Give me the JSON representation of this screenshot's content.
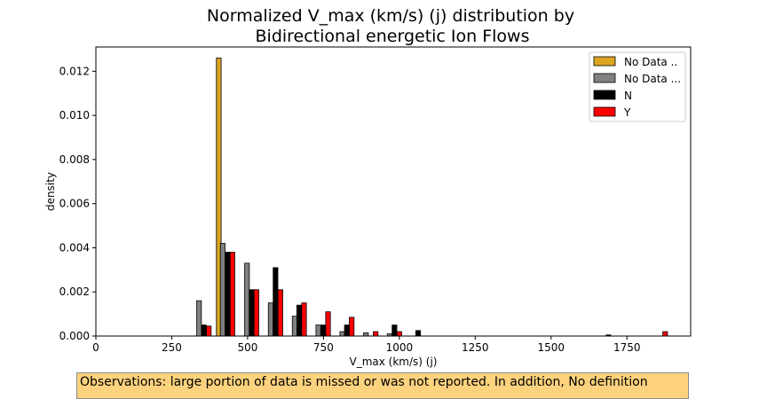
{
  "chart_data": {
    "type": "bar",
    "title_lines": [
      "Normalized V_max (km/s) (j) distribution by",
      "Bidirectional energetic Ion Flows"
    ],
    "xlabel": "V_max (km/s) (j)",
    "ylabel": "density",
    "xlim": [
      0,
      1960
    ],
    "ylim": [
      0,
      0.0131
    ],
    "x_ticks": [
      0,
      250,
      500,
      750,
      1000,
      1250,
      1500,
      1750
    ],
    "y_ticks": [
      0.0,
      0.002,
      0.004,
      0.006,
      0.008,
      0.01,
      0.012
    ],
    "y_tick_labels": [
      "0.000",
      "0.002",
      "0.004",
      "0.006",
      "0.008",
      "0.010",
      "0.012"
    ],
    "bar_width": 15.5,
    "legend_position": "top-right",
    "series": [
      {
        "name": "No Data ..",
        "color": "#daa520",
        "x": [
          405
        ],
        "values": [
          0.0126
        ]
      },
      {
        "name": "No Data ...",
        "color": "#808080",
        "x": [
          340,
          418,
          498,
          576,
          655,
          733,
          812,
          890,
          968
        ],
        "values": [
          0.0016,
          0.0042,
          0.0033,
          0.0015,
          0.0009,
          0.0005,
          0.0002,
          0.00015,
          0.0001
        ]
      },
      {
        "name": "N",
        "color": "#000000",
        "x": [
          356,
          434,
          513,
          592,
          670,
          749,
          827,
          984,
          1062,
          1689
        ],
        "values": [
          0.0005,
          0.0038,
          0.0021,
          0.0031,
          0.0014,
          0.0005,
          0.0005,
          0.0005,
          0.00025,
          5e-05
        ]
      },
      {
        "name": "Y",
        "color": "#ff0000",
        "x": [
          372,
          450,
          529,
          608,
          686,
          765,
          843,
          922,
          1000,
          1876
        ],
        "values": [
          0.00045,
          0.0038,
          0.0021,
          0.0021,
          0.0015,
          0.0011,
          0.00085,
          0.0002,
          0.0002,
          0.0002
        ]
      }
    ]
  },
  "note": {
    "text": "Observations: large portion of data is missed or was not reported. In addition, No definition"
  }
}
